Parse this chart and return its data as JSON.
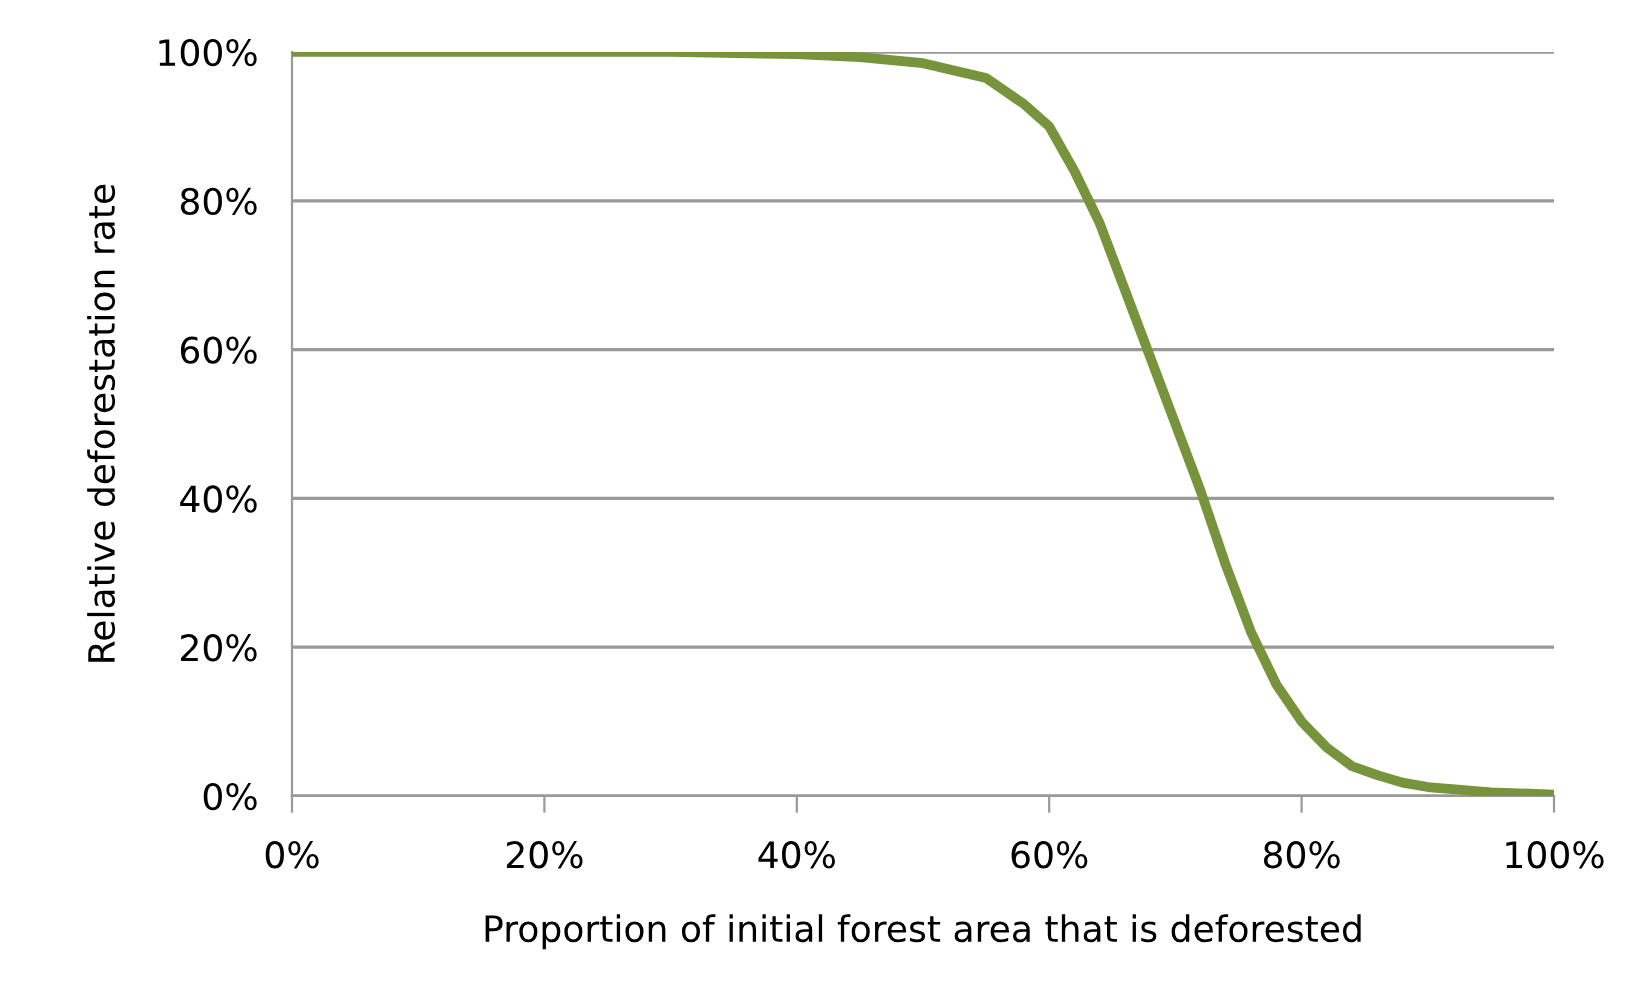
{
  "chart_data": {
    "type": "line",
    "xlabel": "Proportion of initial forest area that is deforested",
    "ylabel": "Relative deforestation rate",
    "x": [
      0,
      10,
      20,
      30,
      40,
      45,
      50,
      55,
      58,
      60,
      62,
      64,
      66,
      68,
      70,
      72,
      74,
      76,
      78,
      80,
      82,
      84,
      86,
      88,
      90,
      95,
      100
    ],
    "series": [
      {
        "color": "#77933c",
        "values": [
          100,
          100,
          100,
          100,
          99.7,
          99.3,
          98.5,
          96.5,
          93,
          90,
          84,
          77,
          68,
          59,
          50,
          41,
          31,
          22,
          15,
          10,
          6.5,
          4,
          2.8,
          1.8,
          1.2,
          0.5,
          0.2
        ]
      }
    ],
    "xlim": [
      0,
      100
    ],
    "ylim": [
      0,
      100
    ],
    "xticks": [
      {
        "value": 0,
        "label": "0%"
      },
      {
        "value": 20,
        "label": "20%"
      },
      {
        "value": 40,
        "label": "40%"
      },
      {
        "value": 60,
        "label": "60%"
      },
      {
        "value": 80,
        "label": "80%"
      },
      {
        "value": 100,
        "label": "100%"
      }
    ],
    "yticks": [
      {
        "value": 0,
        "label": "0%"
      },
      {
        "value": 20,
        "label": "20%"
      },
      {
        "value": 40,
        "label": "40%"
      },
      {
        "value": 60,
        "label": "60%"
      },
      {
        "value": 80,
        "label": "80%"
      },
      {
        "value": 100,
        "label": "100%"
      }
    ],
    "grid": "y",
    "marker": "none",
    "line_style": "solid"
  }
}
